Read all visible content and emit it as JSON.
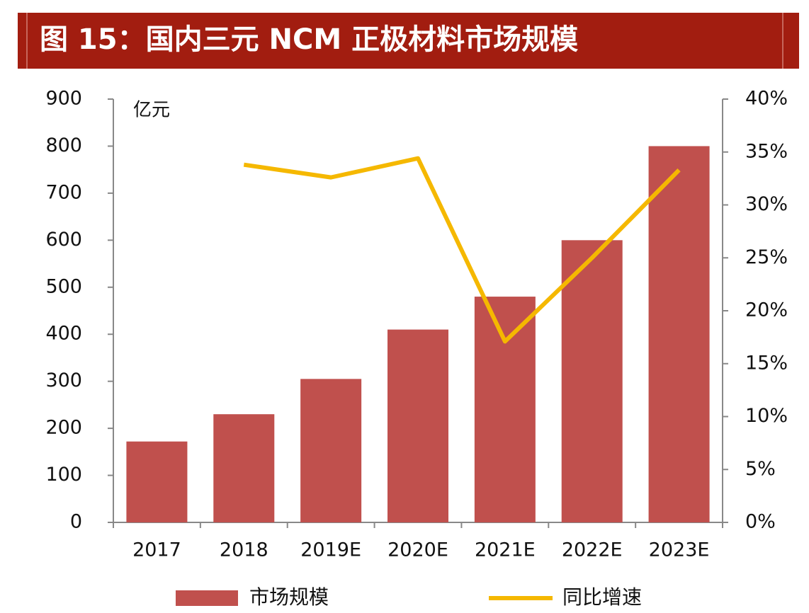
{
  "chart_data": {
    "type": "bar_line",
    "title": "图 15：国内三元 NCM 正极材料市场规模",
    "y_unit_label": "亿元",
    "categories": [
      "2017",
      "2018",
      "2019E",
      "2020E",
      "2021E",
      "2022E",
      "2023E"
    ],
    "series": [
      {
        "name": "市场规模",
        "type": "bar",
        "color": "#c0504d",
        "values": [
          172,
          230,
          305,
          410,
          480,
          600,
          800
        ]
      },
      {
        "name": "同比增速",
        "type": "line",
        "axis": "y2",
        "color": "#f5b800",
        "values": [
          null,
          33.8,
          32.6,
          34.4,
          17.1,
          25,
          33.3
        ]
      }
    ],
    "ylim": [
      0,
      900
    ],
    "yticks": [
      0,
      100,
      200,
      300,
      400,
      500,
      600,
      700,
      800,
      900
    ],
    "y2lim": [
      0,
      40
    ],
    "y2ticks": [
      {
        "value": 0,
        "label": "0%"
      },
      {
        "value": 5,
        "label": "5%"
      },
      {
        "value": 10,
        "label": "10%"
      },
      {
        "value": 15,
        "label": "15%"
      },
      {
        "value": 20,
        "label": "20%"
      },
      {
        "value": 25,
        "label": "25%"
      },
      {
        "value": 30,
        "label": "30%"
      },
      {
        "value": 35,
        "label": "35%"
      },
      {
        "value": 40,
        "label": "40%"
      }
    ],
    "legend": "bottom"
  }
}
